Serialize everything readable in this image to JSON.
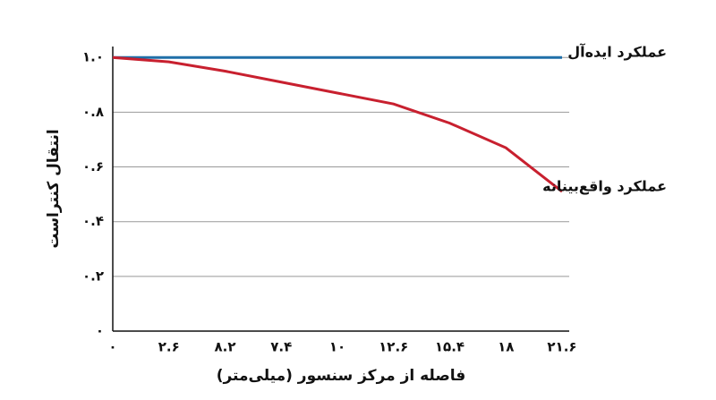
{
  "chart_data": {
    "type": "line",
    "xlabel": "فاصله از مرکز سنسور (میلی‌متر)",
    "ylabel": "انتقال کنتراست",
    "categories": [
      "۰",
      "۲.۶",
      "۸.۲",
      "۷.۴",
      "۱۰",
      "۱۲.۶",
      "۱۵.۴",
      "۱۸",
      "۲۱.۶"
    ],
    "series": [
      {
        "name": "عملکرد ایده‌آل",
        "color": "#1f6fa8",
        "values": [
          1.0,
          1.0,
          1.0,
          1.0,
          1.0,
          1.0,
          1.0,
          1.0,
          1.0
        ]
      },
      {
        "name": "عملکرد واقع‌بینانه",
        "color": "#c8202f",
        "values": [
          1.0,
          0.984,
          0.95,
          0.91,
          0.87,
          0.83,
          0.76,
          0.67,
          0.51
        ]
      }
    ],
    "ylim": [
      0,
      1.04
    ],
    "yticks": [
      {
        "value": 0,
        "label": "۰"
      },
      {
        "value": 0.2,
        "label": "۰.۲"
      },
      {
        "value": 0.4,
        "label": "۰.۴"
      },
      {
        "value": 0.6,
        "label": "۰.۶"
      },
      {
        "value": 0.8,
        "label": "۰.۸"
      },
      {
        "value": 1.0,
        "label": "۱.۰"
      }
    ],
    "grid": true
  }
}
